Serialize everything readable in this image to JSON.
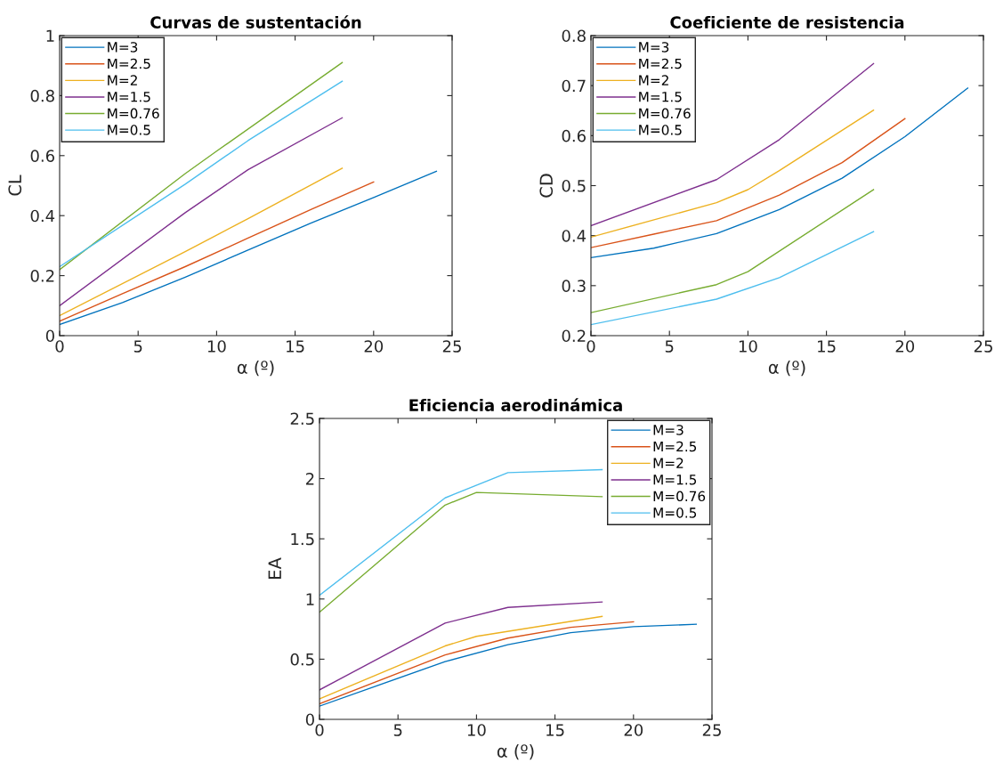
{
  "chart_data": [
    {
      "type": "line",
      "title": "Curvas de sustentación",
      "xlabel": "α (º)",
      "ylabel": "CL",
      "xlim": [
        0,
        25
      ],
      "xticks": [
        0,
        5,
        10,
        15,
        20,
        25
      ],
      "ylim": [
        0,
        1
      ],
      "yticks": [
        0,
        0.2,
        0.4,
        0.6,
        0.8,
        1
      ],
      "legend": "top left",
      "grid": false,
      "series": [
        {
          "name": "M=3",
          "color": "#0072bd",
          "x": [
            0,
            4,
            8,
            12,
            16,
            20,
            24
          ],
          "values": [
            0.037,
            0.11,
            0.195,
            0.285,
            0.375,
            0.46,
            0.548
          ]
        },
        {
          "name": "M=2.5",
          "color": "#d95319",
          "x": [
            0,
            4,
            8,
            12,
            16,
            20
          ],
          "values": [
            0.048,
            0.14,
            0.23,
            0.325,
            0.42,
            0.512
          ]
        },
        {
          "name": "M=2",
          "color": "#edb120",
          "x": [
            0,
            8,
            10,
            12,
            18
          ],
          "values": [
            0.067,
            0.28,
            0.335,
            0.39,
            0.558
          ]
        },
        {
          "name": "M=1.5",
          "color": "#7e2f8e",
          "x": [
            0,
            8,
            12,
            18
          ],
          "values": [
            0.1,
            0.41,
            0.553,
            0.726
          ]
        },
        {
          "name": "M=0.76",
          "color": "#77ac30",
          "x": [
            0,
            8,
            10,
            18
          ],
          "values": [
            0.22,
            0.54,
            0.615,
            0.91
          ]
        },
        {
          "name": "M=0.5",
          "color": "#4dbeee",
          "x": [
            0,
            8,
            12,
            18
          ],
          "values": [
            0.23,
            0.505,
            0.65,
            0.848
          ]
        }
      ]
    },
    {
      "type": "line",
      "title": "Coeficiente de resistencia",
      "xlabel": "α (º)",
      "ylabel": "CD",
      "xlim": [
        0,
        25
      ],
      "xticks": [
        0,
        5,
        10,
        15,
        20,
        25
      ],
      "ylim": [
        0.2,
        0.8
      ],
      "yticks": [
        0.2,
        0.3,
        0.4,
        0.5,
        0.6,
        0.7,
        0.8
      ],
      "legend": "top left",
      "grid": false,
      "series": [
        {
          "name": "M=3",
          "color": "#0072bd",
          "x": [
            0,
            4,
            8,
            12,
            16,
            20,
            24
          ],
          "values": [
            0.356,
            0.375,
            0.404,
            0.452,
            0.515,
            0.598,
            0.695
          ]
        },
        {
          "name": "M=2.5",
          "color": "#d95319",
          "x": [
            0,
            4,
            8,
            12,
            16,
            20
          ],
          "values": [
            0.376,
            0.403,
            0.43,
            0.481,
            0.546,
            0.634
          ]
        },
        {
          "name": "M=2",
          "color": "#edb120",
          "x": [
            0,
            8,
            10,
            12,
            18
          ],
          "values": [
            0.397,
            0.466,
            0.492,
            0.53,
            0.651
          ]
        },
        {
          "name": "M=1.5",
          "color": "#7e2f8e",
          "x": [
            0,
            8,
            12,
            18
          ],
          "values": [
            0.42,
            0.512,
            0.592,
            0.744
          ]
        },
        {
          "name": "M=0.76",
          "color": "#77ac30",
          "x": [
            0,
            8,
            10,
            18
          ],
          "values": [
            0.246,
            0.302,
            0.328,
            0.492
          ]
        },
        {
          "name": "M=0.5",
          "color": "#4dbeee",
          "x": [
            0,
            8,
            12,
            18
          ],
          "values": [
            0.222,
            0.273,
            0.316,
            0.408
          ]
        }
      ]
    },
    {
      "type": "line",
      "title": "Eficiencia aerodinámica",
      "xlabel": "α (º)",
      "ylabel": "EA",
      "xlim": [
        0,
        25
      ],
      "xticks": [
        0,
        5,
        10,
        15,
        20,
        25
      ],
      "ylim": [
        0,
        2.5
      ],
      "yticks": [
        0,
        0.5,
        1,
        1.5,
        2,
        2.5
      ],
      "legend": "top right",
      "grid": false,
      "series": [
        {
          "name": "M=3",
          "color": "#0072bd",
          "x": [
            0,
            8,
            12,
            16,
            20,
            24
          ],
          "values": [
            0.11,
            0.48,
            0.62,
            0.72,
            0.77,
            0.79
          ]
        },
        {
          "name": "M=2.5",
          "color": "#d95319",
          "x": [
            0,
            8,
            12,
            16,
            20
          ],
          "values": [
            0.13,
            0.535,
            0.675,
            0.765,
            0.81
          ]
        },
        {
          "name": "M=2",
          "color": "#edb120",
          "x": [
            0,
            8,
            10,
            18
          ],
          "values": [
            0.17,
            0.61,
            0.69,
            0.855
          ]
        },
        {
          "name": "M=1.5",
          "color": "#7e2f8e",
          "x": [
            0,
            8,
            12,
            18
          ],
          "values": [
            0.245,
            0.8,
            0.93,
            0.975
          ]
        },
        {
          "name": "M=0.76",
          "color": "#77ac30",
          "x": [
            0,
            8,
            10,
            18
          ],
          "values": [
            0.89,
            1.78,
            1.885,
            1.85
          ]
        },
        {
          "name": "M=0.5",
          "color": "#4dbeee",
          "x": [
            0,
            8,
            12,
            18
          ],
          "values": [
            1.03,
            1.84,
            2.05,
            2.075
          ]
        }
      ]
    }
  ]
}
